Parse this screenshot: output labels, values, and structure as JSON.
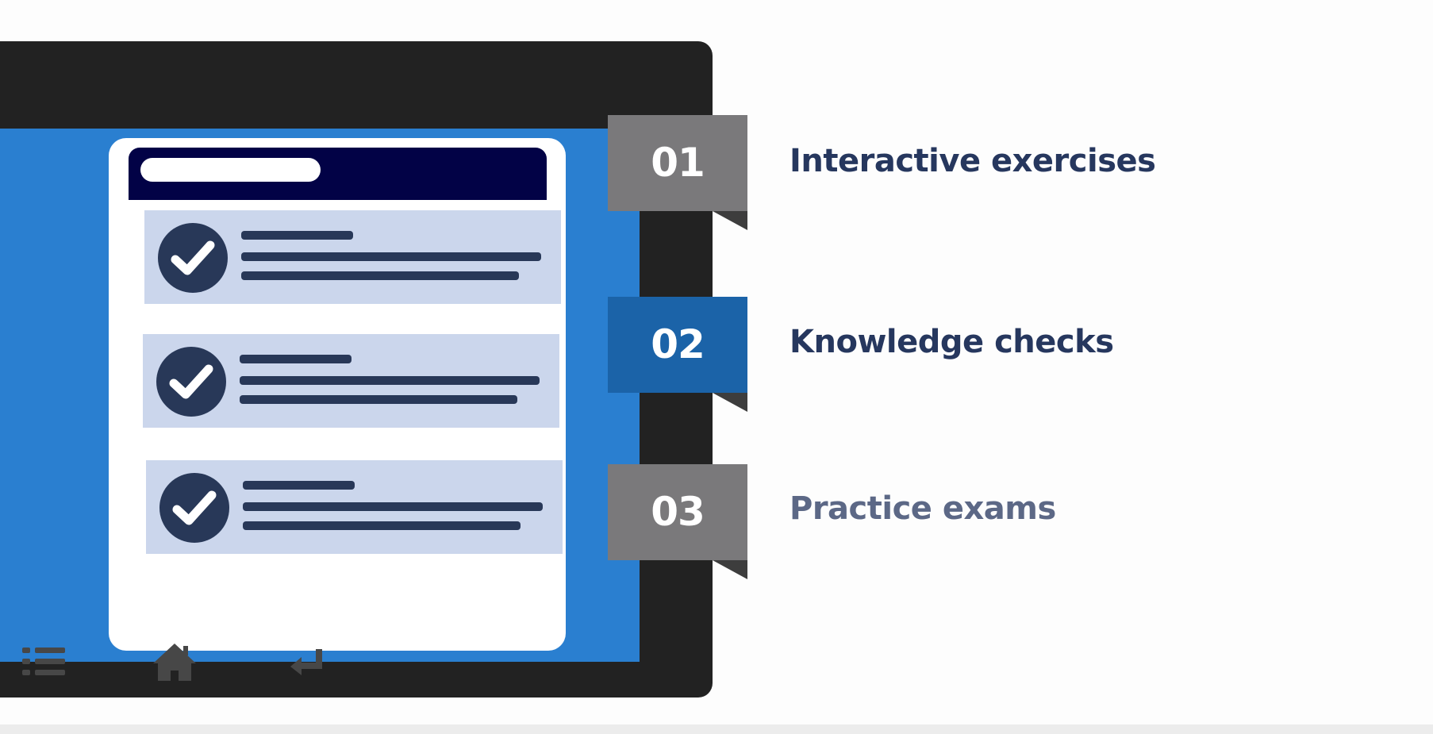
{
  "features": [
    {
      "number": "01",
      "label": "Interactive exercises",
      "state": "default",
      "tab_color": "#7a797b",
      "label_color": "#26375e"
    },
    {
      "number": "02",
      "label": "Knowledge checks",
      "state": "active",
      "tab_color": "#1b63a8",
      "label_color": "#26375e"
    },
    {
      "number": "03",
      "label": "Practice exams",
      "state": "dimmed",
      "tab_color": "#7a797b",
      "label_color": "#5c6886"
    }
  ],
  "device": {
    "screen_color": "#2a7fd0",
    "frame_color": "#222222",
    "checklist_items": [
      {
        "icon": "checkmark-icon",
        "status": "checked"
      },
      {
        "icon": "checkmark-icon",
        "status": "checked"
      },
      {
        "icon": "checkmark-icon",
        "status": "checked"
      }
    ],
    "navbar_icons": [
      "menu-list-icon",
      "home-icon",
      "back-arrow-icon"
    ]
  }
}
